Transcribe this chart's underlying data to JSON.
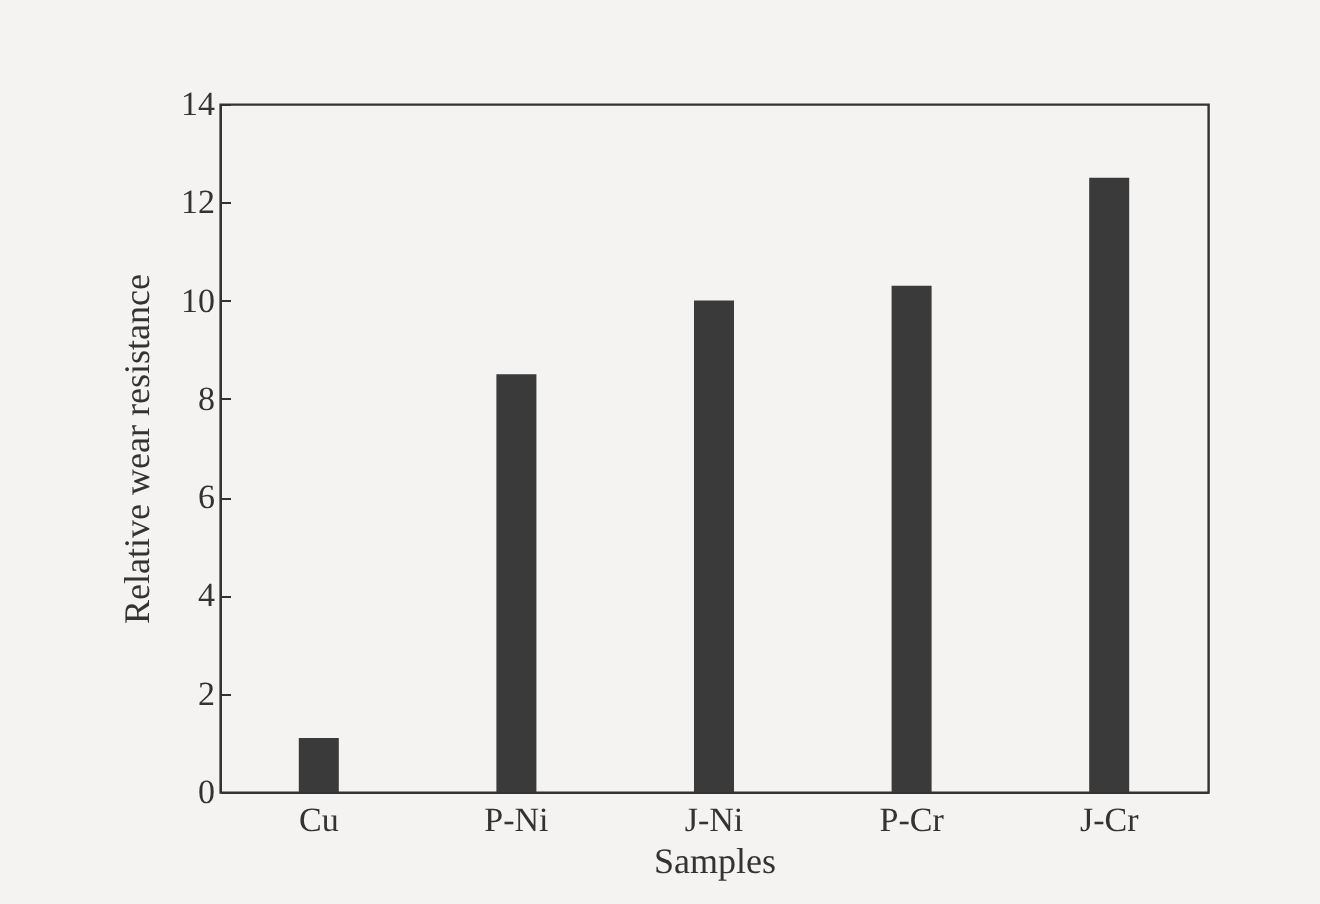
{
  "chart_data": {
    "type": "bar",
    "xlabel": "Samples",
    "ylabel": "Relative wear resistance",
    "categories": [
      "Cu",
      "P-Ni",
      "J-Ni",
      "P-Cr",
      "J-Cr"
    ],
    "values": [
      1.1,
      8.5,
      10.0,
      10.3,
      12.5
    ],
    "color": "#3a3a3a",
    "ylim": [
      0,
      14
    ],
    "yticks": [
      0,
      2,
      4,
      6,
      8,
      10,
      12,
      14
    ],
    "grid": false
  }
}
